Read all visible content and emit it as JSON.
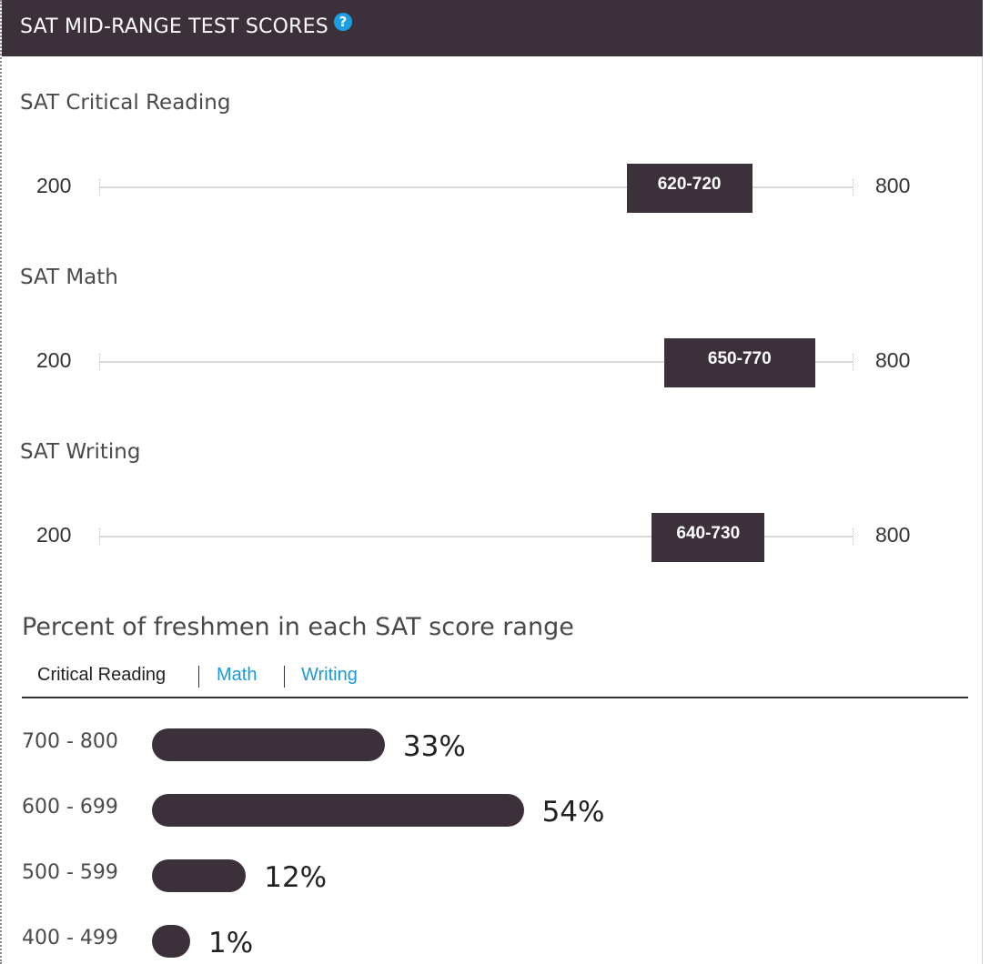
{
  "header": {
    "title": "SAT MID-RANGE TEST SCORES",
    "help_icon": "question-circle-icon",
    "help_glyph": "?"
  },
  "colors": {
    "header_bg": "#3c313b",
    "bar": "#3c313b",
    "link": "#1a9ad6",
    "help": "#1aa0e0"
  },
  "chart_data": [
    {
      "type": "range",
      "scale": {
        "min": 200,
        "max": 800,
        "min_label": "200",
        "max_label": "800"
      },
      "ranges": [
        {
          "title": "SAT Critical Reading",
          "low": 620,
          "high": 720,
          "label": "620-720"
        },
        {
          "title": "SAT Math",
          "low": 650,
          "high": 770,
          "label": "650-770"
        },
        {
          "title": "SAT Writing",
          "low": 640,
          "high": 730,
          "label": "640-730"
        }
      ]
    },
    {
      "type": "bar",
      "title": "Percent of freshmen in each SAT score range",
      "tabs": [
        {
          "label": "Critical Reading",
          "active": true
        },
        {
          "label": "Math",
          "active": false
        },
        {
          "label": "Writing",
          "active": false
        }
      ],
      "categories": [
        "700 - 800",
        "600 - 699",
        "500 - 599",
        "400 - 499"
      ],
      "values": [
        33,
        54,
        12,
        1
      ],
      "value_labels": [
        "33%",
        "54%",
        "12%",
        "1%"
      ]
    }
  ]
}
